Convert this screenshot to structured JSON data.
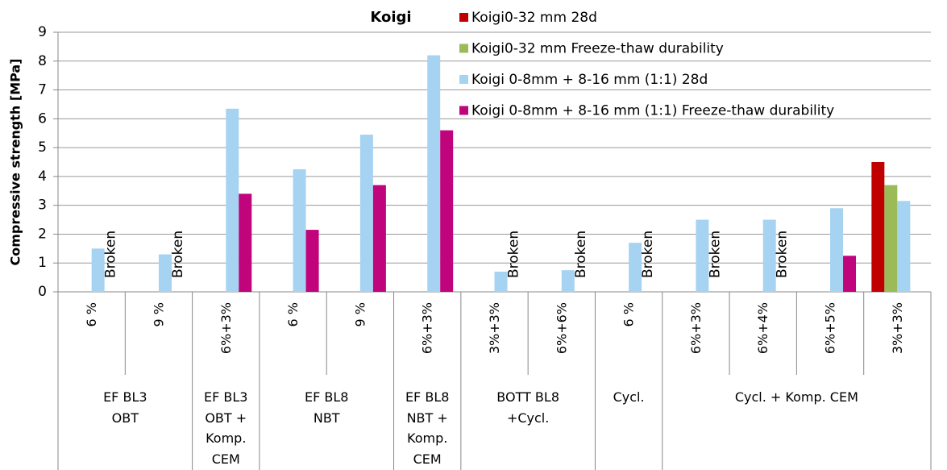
{
  "chart_data": {
    "type": "bar",
    "title": "Koigi",
    "y_label": "Compressive strength [MPa]",
    "groups": [
      {
        "label": "EF BL3 OBT",
        "categories": [
          "6 %",
          "9 %"
        ]
      },
      {
        "label": "EF BL3 OBT + Komp. CEM",
        "categories": [
          "6%+3%"
        ]
      },
      {
        "label": "EF BL8 NBT",
        "categories": [
          "6 %",
          "9 %"
        ]
      },
      {
        "label": "EF BL8 NBT + Komp. CEM",
        "categories": [
          "6%+3%"
        ]
      },
      {
        "label": "BOTT BL8 +Cycl.",
        "categories": [
          "3%+3%",
          "6%+6%"
        ]
      },
      {
        "label": "Cycl.",
        "categories": [
          "6 %"
        ]
      },
      {
        "label": "Cycl. + Komp. CEM",
        "categories": [
          "6%+3%",
          "6%+4%",
          "6%+5%",
          "3%+3%"
        ]
      }
    ],
    "series": [
      {
        "name": "Koigi0-32 mm 28d",
        "color": "#c00000",
        "values": [
          null,
          null,
          null,
          null,
          null,
          null,
          null,
          null,
          null,
          null,
          null,
          null,
          4.5
        ]
      },
      {
        "name": "Koigi0-32 mm Freeze-thaw durability",
        "color": "#9bbb59",
        "values": [
          null,
          null,
          null,
          null,
          null,
          null,
          null,
          null,
          null,
          null,
          null,
          null,
          3.7
        ]
      },
      {
        "name": "Koigi 0-8mm + 8-16 mm (1:1) 28d",
        "color": "#a6d3f2",
        "values": [
          1.5,
          1.3,
          6.35,
          4.25,
          5.45,
          8.2,
          0.7,
          0.75,
          1.7,
          2.5,
          2.5,
          2.9,
          3.15
        ]
      },
      {
        "name": "Koigi 0-8mm + 8-16 mm (1:1) Freeze-thaw durability",
        "color": "#c0047c",
        "values": [
          null,
          null,
          3.4,
          2.15,
          3.7,
          5.6,
          null,
          null,
          null,
          null,
          null,
          1.25,
          null
        ],
        "value_labels": [
          "Broken",
          "Broken",
          null,
          null,
          null,
          null,
          "Broken",
          "Broken",
          "Broken",
          "Broken",
          "Broken",
          null,
          null
        ]
      }
    ],
    "ylim": [
      0,
      9
    ],
    "yticks": [
      0,
      1,
      2,
      3,
      4,
      5,
      6,
      7,
      8,
      9
    ],
    "grid": true,
    "legend": "top-right"
  }
}
